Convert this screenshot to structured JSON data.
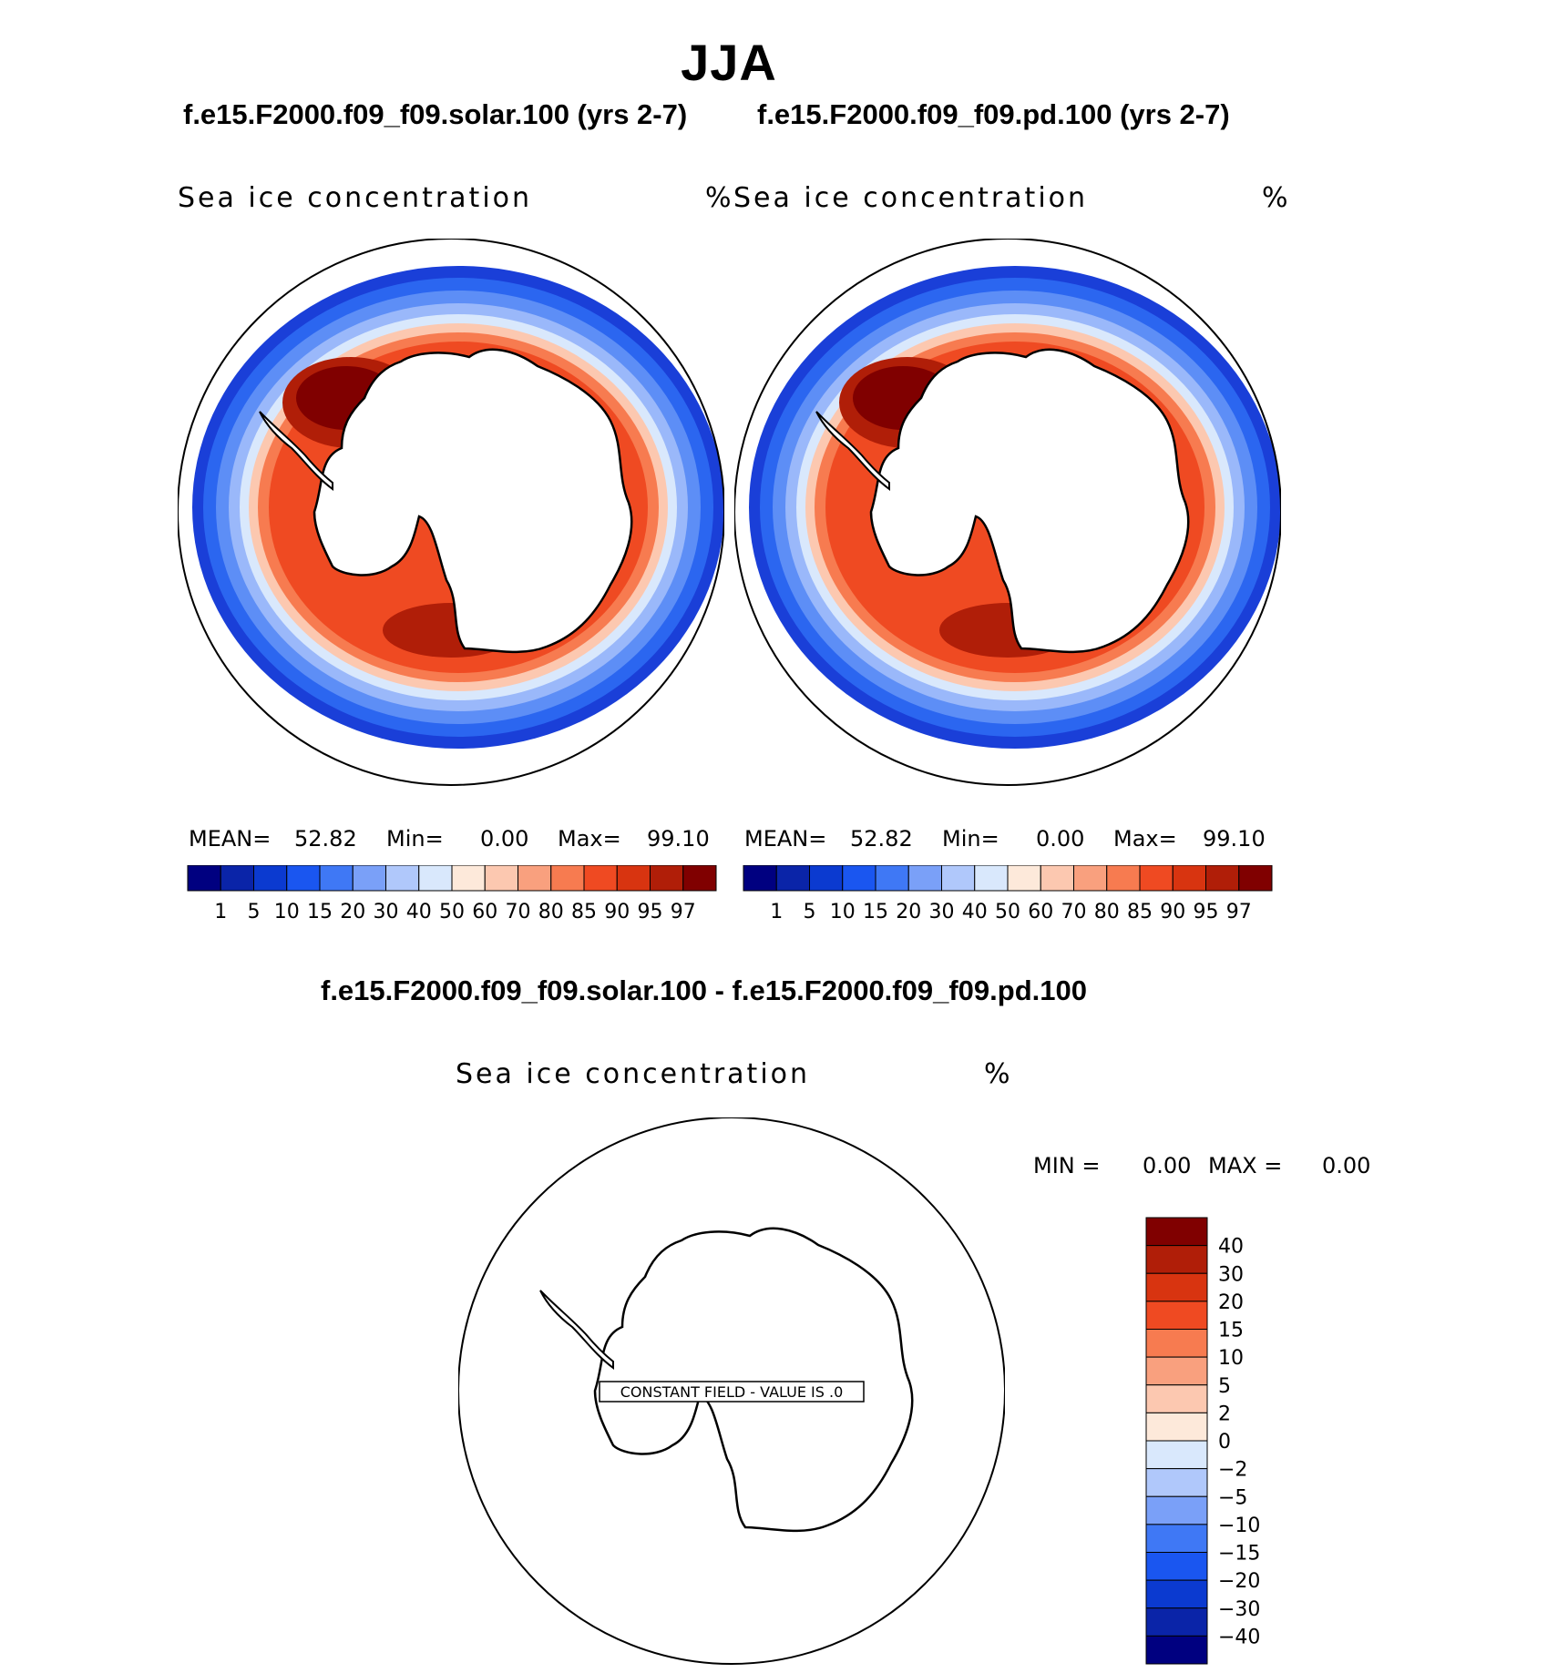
{
  "figure": {
    "title": "JJA",
    "left_case": "f.e15.F2000.f09_f09.solar.100 (yrs 2-7)",
    "right_case": "f.e15.F2000.f09_f09.pd.100 (yrs 2-7)",
    "diff_title": "f.e15.F2000.f09_f09.solar.100 - f.e15.F2000.f09_f09.pd.100"
  },
  "chart_data": [
    {
      "type": "heatmap",
      "panel": "solar",
      "variable": "Sea ice concentration",
      "units": "%",
      "stats": {
        "mean_label": "MEAN=",
        "mean": "52.82",
        "min_label": "Min=",
        "min": "0.00",
        "max_label": "Max=",
        "max": "99.10"
      },
      "levels": [
        "1",
        "5",
        "10",
        "15",
        "20",
        "30",
        "40",
        "50",
        "60",
        "70",
        "80",
        "85",
        "90",
        "95",
        "97"
      ],
      "colors": [
        "#000080",
        "#0a24a8",
        "#0b3ad0",
        "#1a56f0",
        "#3f78f5",
        "#7aa0f8",
        "#b0c8fb",
        "#d9e8fc",
        "#fde9da",
        "#fcc8b0",
        "#f9a07e",
        "#f77b50",
        "#ef4a22",
        "#d83410",
        "#b01e08",
        "#800000"
      ]
    },
    {
      "type": "heatmap",
      "panel": "pd",
      "variable": "Sea ice concentration",
      "units": "%",
      "stats": {
        "mean_label": "MEAN=",
        "mean": "52.82",
        "min_label": "Min=",
        "min": "0.00",
        "max_label": "Max=",
        "max": "99.10"
      },
      "levels": [
        "1",
        "5",
        "10",
        "15",
        "20",
        "30",
        "40",
        "50",
        "60",
        "70",
        "80",
        "85",
        "90",
        "95",
        "97"
      ],
      "colors": [
        "#000080",
        "#0a24a8",
        "#0b3ad0",
        "#1a56f0",
        "#3f78f5",
        "#7aa0f8",
        "#b0c8fb",
        "#d9e8fc",
        "#fde9da",
        "#fcc8b0",
        "#f9a07e",
        "#f77b50",
        "#ef4a22",
        "#d83410",
        "#b01e08",
        "#800000"
      ]
    },
    {
      "type": "heatmap",
      "panel": "difference",
      "variable": "Sea ice concentration",
      "units": "%",
      "stats": {
        "min_label": "MIN =",
        "min": "0.00",
        "max_label": "MAX =",
        "max": "0.00"
      },
      "annotation": "CONSTANT FIELD - VALUE IS .0",
      "levels": [
        "40",
        "30",
        "20",
        "15",
        "10",
        "5",
        "2",
        "0",
        "-2",
        "-5",
        "-10",
        "-15",
        "-20",
        "-30",
        "-40"
      ],
      "colors": [
        "#800000",
        "#b01e08",
        "#d83410",
        "#ef4a22",
        "#f77b50",
        "#f9a07e",
        "#fcc8b0",
        "#fde9da",
        "#d9e8fc",
        "#b0c8fb",
        "#7aa0f8",
        "#3f78f5",
        "#1a56f0",
        "#0b3ad0",
        "#0a24a8",
        "#000080"
      ]
    }
  ]
}
